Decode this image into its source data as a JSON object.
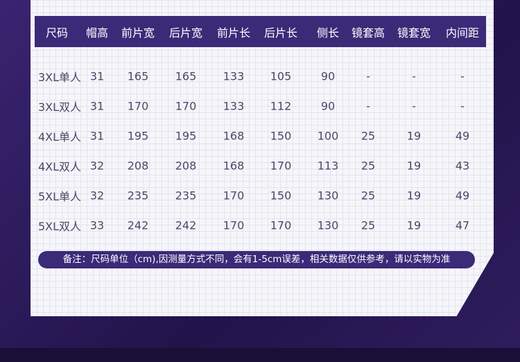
{
  "table": {
    "header": [
      "尺码",
      "帽高",
      "前片宽",
      "后片宽",
      "前片长",
      "后片长",
      "侧长",
      "镜套高",
      "镜套宽",
      "内间距"
    ],
    "rows": [
      [
        "3XL单人",
        "31",
        "165",
        "165",
        "133",
        "105",
        "90",
        "-",
        "-",
        "-"
      ],
      [
        "3XL双人",
        "31",
        "170",
        "170",
        "133",
        "112",
        "90",
        "-",
        "-",
        "-"
      ],
      [
        "4XL单人",
        "31",
        "195",
        "195",
        "168",
        "150",
        "100",
        "25",
        "19",
        "49"
      ],
      [
        "4XL双人",
        "32",
        "208",
        "208",
        "168",
        "170",
        "113",
        "25",
        "19",
        "43"
      ],
      [
        "5XL单人",
        "32",
        "235",
        "235",
        "170",
        "150",
        "130",
        "25",
        "19",
        "49"
      ],
      [
        "5XL双人",
        "33",
        "242",
        "242",
        "170",
        "170",
        "130",
        "25",
        "19",
        "47"
      ]
    ]
  },
  "note": "备注：尺码单位（cm),因测量方式不同，会有1-5cm误差，相关数据仅供参考，请以实物为准"
}
